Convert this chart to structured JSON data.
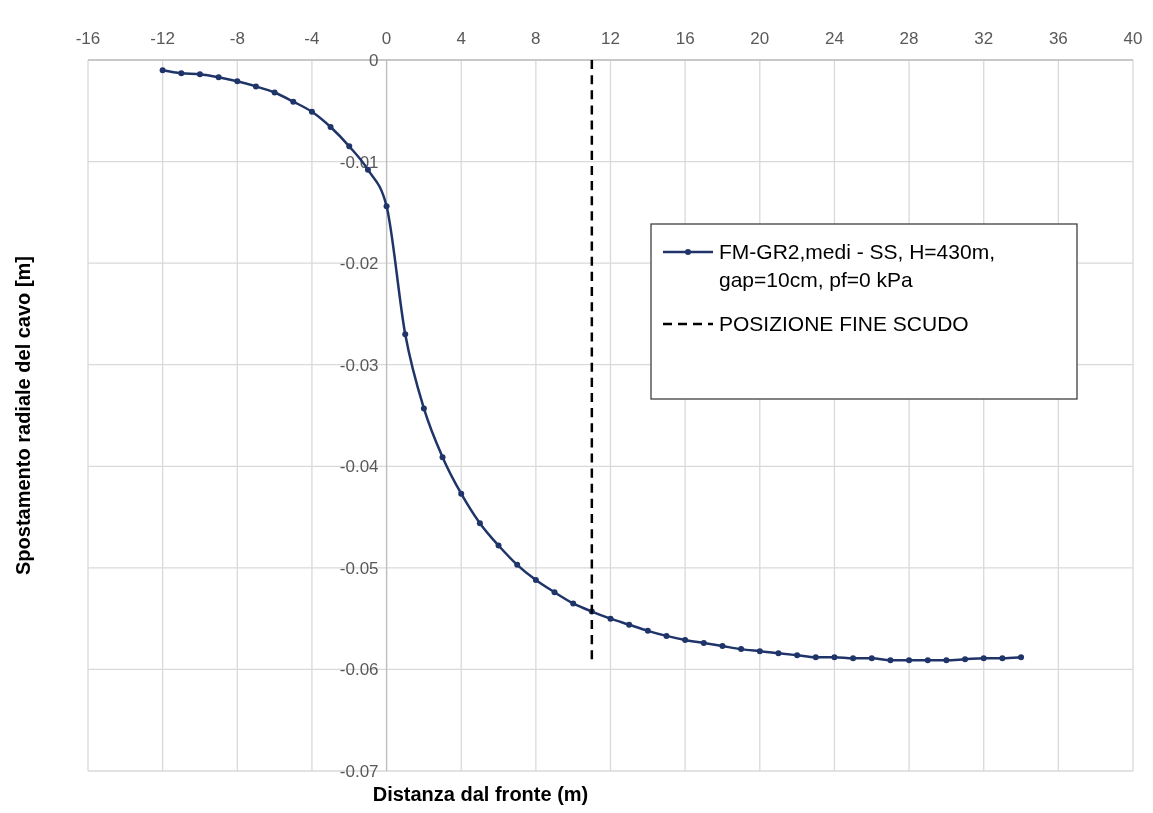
{
  "chart_data": {
    "type": "line",
    "xlabel": "Distanza dal fronte (m)",
    "ylabel": "Spostamento radiale del cavo [m]",
    "xlim": [
      -16,
      40
    ],
    "xticks": [
      -16,
      -12,
      -8,
      -4,
      0,
      4,
      8,
      12,
      16,
      20,
      24,
      28,
      32,
      36,
      40
    ],
    "ylim": [
      -0.07,
      0
    ],
    "yticks": [
      -0.07,
      -0.06,
      -0.05,
      -0.04,
      -0.03,
      -0.02,
      -0.01,
      0
    ],
    "grid": true,
    "legend": "right",
    "marker": "circle",
    "series": [
      {
        "name": "FM-GR2,medi - SS, H=430m, gap=10cm, pf=0 kPa",
        "color": "#1f3468",
        "line_style": "solid",
        "x": [
          -12,
          -11,
          -10,
          -9,
          -8,
          -7,
          -6,
          -5,
          -4,
          -3,
          -2,
          -1,
          0,
          1,
          2,
          3,
          4,
          5,
          6,
          7,
          8,
          9,
          10,
          11,
          12,
          13,
          14,
          15,
          16,
          17,
          18,
          19,
          20,
          21,
          22,
          23,
          24,
          25,
          26,
          27,
          28,
          29,
          30,
          31,
          32,
          33,
          34
        ],
        "values": [
          -0.001,
          -0.0013,
          -0.0014,
          -0.0017,
          -0.0021,
          -0.0026,
          -0.0032,
          -0.0041,
          -0.0051,
          -0.0066,
          -0.0085,
          -0.0108,
          -0.0144,
          -0.027,
          -0.0343,
          -0.0391,
          -0.0427,
          -0.0456,
          -0.0478,
          -0.0497,
          -0.0512,
          -0.0524,
          -0.0535,
          -0.0543,
          -0.055,
          -0.0556,
          -0.0562,
          -0.0567,
          -0.0571,
          -0.0574,
          -0.0577,
          -0.058,
          -0.0582,
          -0.0584,
          -0.0586,
          -0.0588,
          -0.0588,
          -0.0589,
          -0.0589,
          -0.0591,
          -0.0591,
          -0.0591,
          -0.0591,
          -0.059,
          -0.0589,
          -0.0589,
          -0.0588
        ]
      },
      {
        "name": "POSIZIONE FINE SCUDO",
        "color": "#000000",
        "line_style": "dashed",
        "marker": "none",
        "x": [
          11,
          11
        ],
        "values": [
          0,
          -0.059
        ]
      }
    ]
  }
}
